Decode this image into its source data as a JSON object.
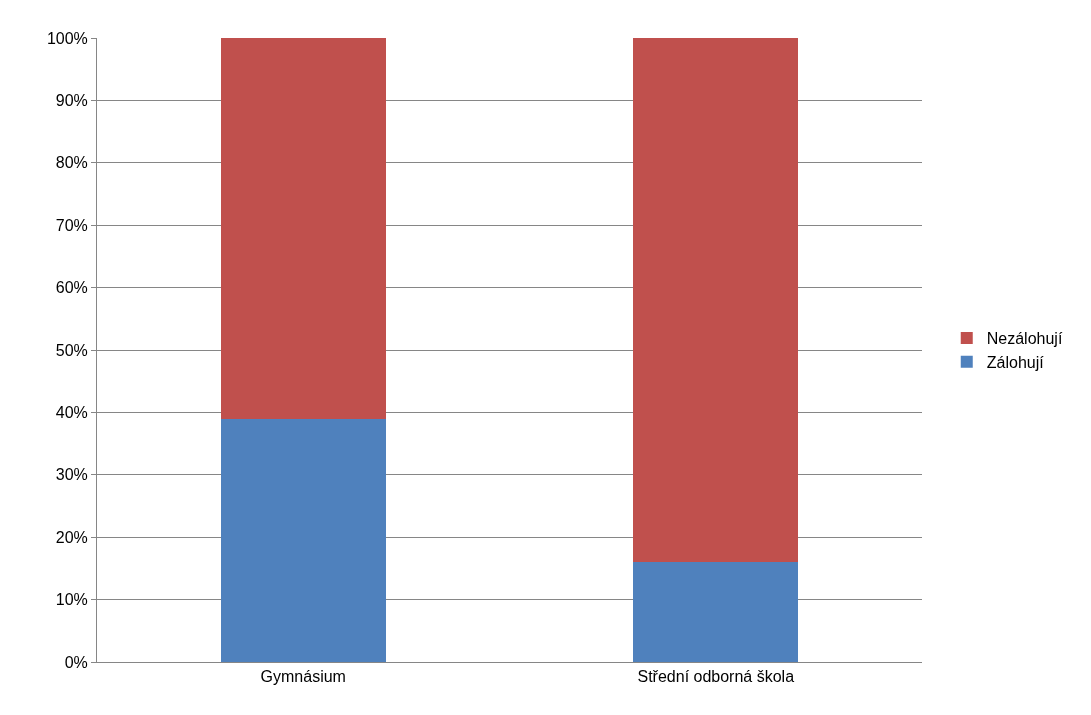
{
  "chart_data": {
    "type": "bar",
    "stacked": true,
    "categories": [
      "Gymnásium",
      "Střední odborná škola"
    ],
    "series": [
      {
        "name": "Zálohují",
        "color": "#4f81bd",
        "values": [
          39,
          16
        ]
      },
      {
        "name": "Nezálohují",
        "color": "#c0504d",
        "values": [
          61,
          84
        ]
      }
    ],
    "ylim": [
      0,
      100
    ],
    "yticks": [
      {
        "value": 0,
        "label": "0%"
      },
      {
        "value": 10,
        "label": "10%"
      },
      {
        "value": 20,
        "label": "20%"
      },
      {
        "value": 30,
        "label": "30%"
      },
      {
        "value": 40,
        "label": "40%"
      },
      {
        "value": 50,
        "label": "50%"
      },
      {
        "value": 60,
        "label": "60%"
      },
      {
        "value": 70,
        "label": "70%"
      },
      {
        "value": 80,
        "label": "80%"
      },
      {
        "value": 90,
        "label": "90%"
      },
      {
        "value": 100,
        "label": "100%"
      }
    ],
    "grid": "y",
    "legend": "right"
  }
}
